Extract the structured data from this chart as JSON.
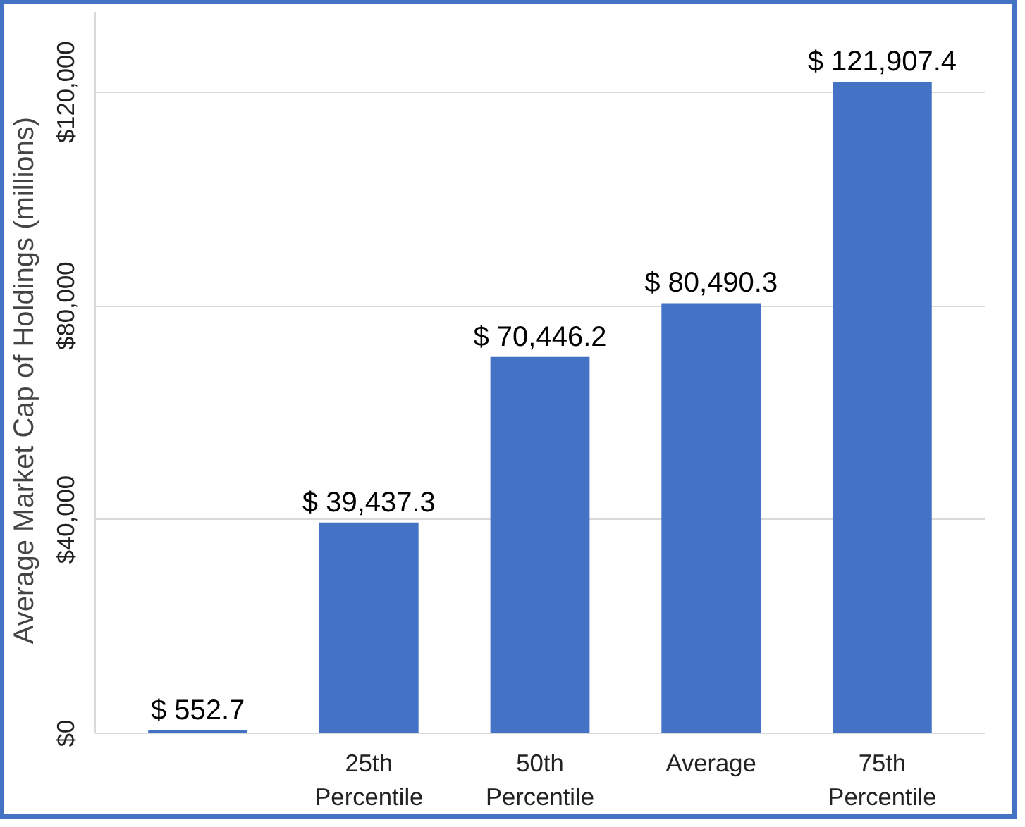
{
  "chart_data": {
    "type": "bar",
    "ylabel": "Average Market Cap of Holdings   (millions)",
    "categories": [
      null,
      "25th\nPercentile",
      "50th\nPercentile",
      "Average",
      "75th\nPercentile"
    ],
    "values": [
      552.7,
      39437.3,
      70446.2,
      80490.3,
      121907.4
    ],
    "value_labels": [
      "$ 552.7",
      "$ 39,437.3",
      "$ 70,446.2",
      "$ 80,490.3",
      "$ 121,907.4"
    ],
    "color": "#4472c4",
    "ylim": [
      0,
      135000
    ],
    "yticks": [
      {
        "value": 0,
        "label": "$0"
      },
      {
        "value": 40000,
        "label": "$40,000"
      },
      {
        "value": 80000,
        "label": "$80,000"
      },
      {
        "value": 120000,
        "label": "$120,000"
      }
    ],
    "grid": "y"
  }
}
